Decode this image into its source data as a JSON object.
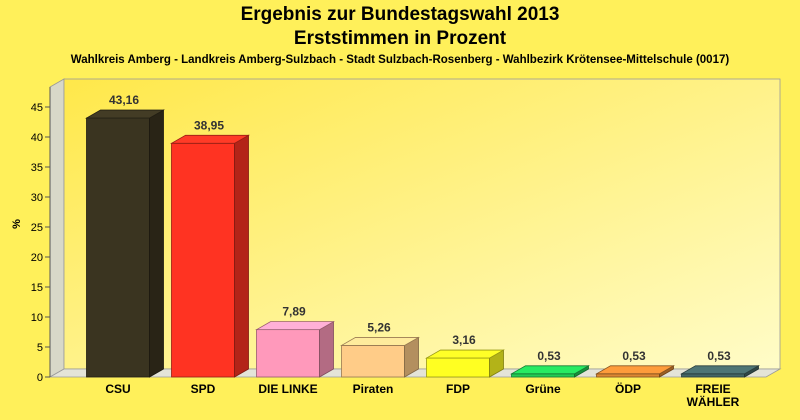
{
  "chart_data": {
    "type": "bar",
    "title": "Ergebnis zur Bundestagswahl 2013",
    "subtitle_line": "Erststimmen in Prozent",
    "caption": "Wahlkreis Amberg - Landkreis Amberg-Sulzbach - Stadt Sulzbach-Rosenberg - Wahlbezirk Krötensee-Mittelschule (0017)",
    "ylabel": "%",
    "xlabel": "",
    "ylim": [
      0,
      45
    ],
    "yticks": [
      0,
      5,
      10,
      15,
      20,
      25,
      30,
      35,
      40,
      45
    ],
    "grid": false,
    "categories": [
      "CSU",
      "SPD",
      "DIE LINKE",
      "Piraten",
      "FDP",
      "Grüne",
      "ÖDP",
      "FREIE WÄHLER"
    ],
    "category_lines": [
      [
        "CSU"
      ],
      [
        "SPD"
      ],
      [
        "DIE LINKE"
      ],
      [
        "Piraten"
      ],
      [
        "FDP"
      ],
      [
        "Grüne"
      ],
      [
        "ÖDP"
      ],
      [
        "FREIE",
        "WÄHLER"
      ]
    ],
    "values": [
      43.16,
      38.95,
      7.89,
      5.26,
      3.16,
      0.53,
      0.53,
      0.53
    ],
    "value_labels": [
      "43,16",
      "38,95",
      "7,89",
      "5,26",
      "3,16",
      "0,53",
      "0,53",
      "0,53"
    ],
    "colors": [
      "#3a3420",
      "#ff3322",
      "#ff99bb",
      "#ffcc88",
      "#ffff22",
      "#22cc55",
      "#dd8833",
      "#446666"
    ]
  }
}
